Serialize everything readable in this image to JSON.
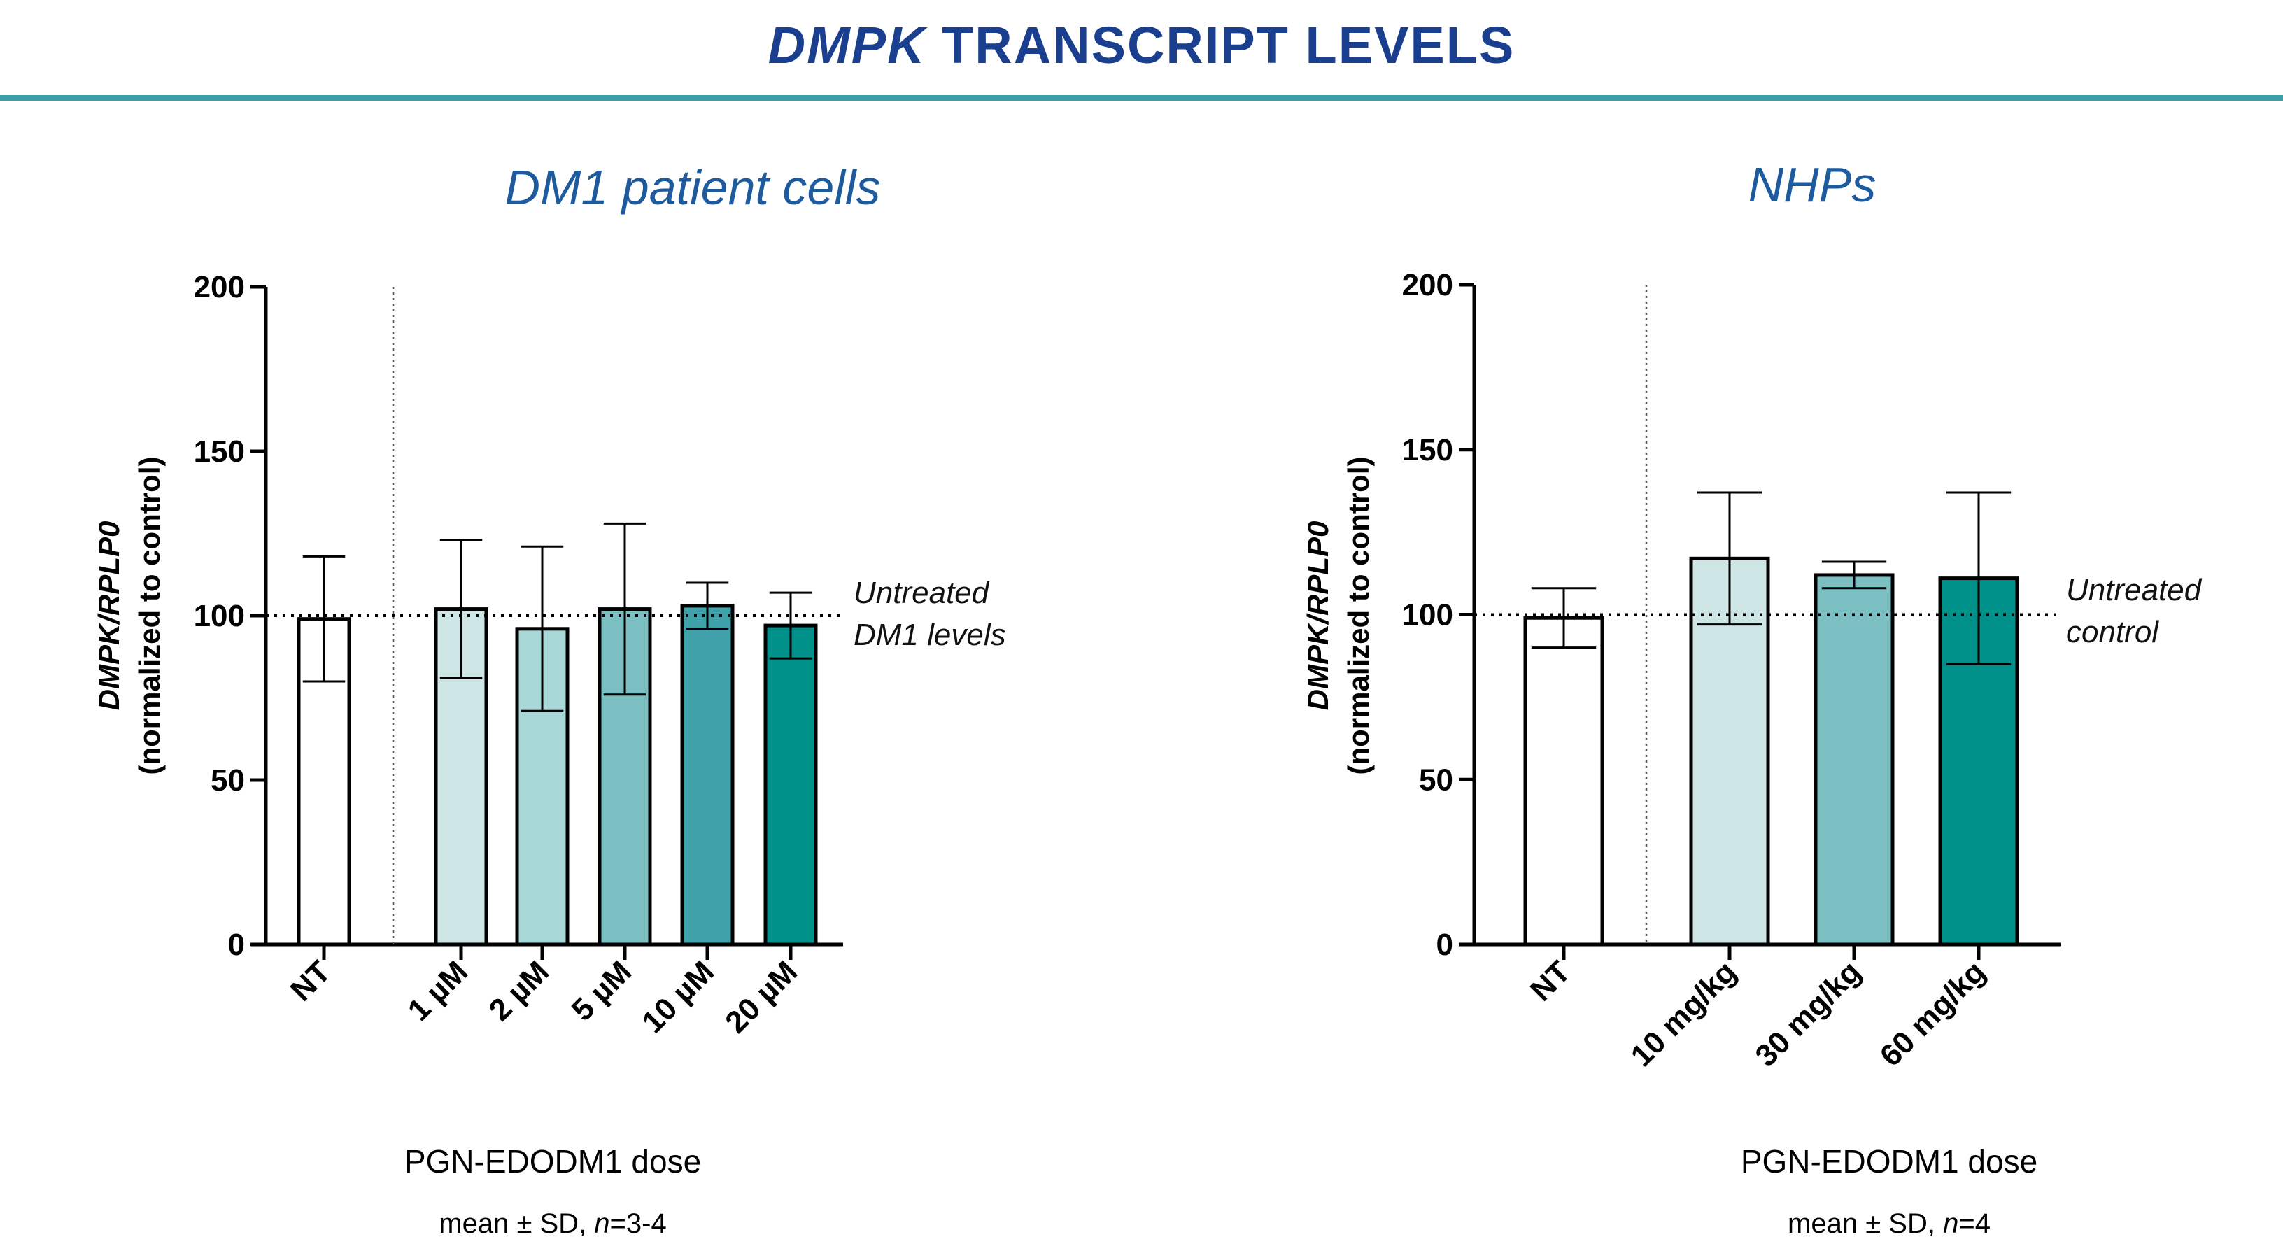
{
  "page": {
    "title_italic": "DMPK",
    "title_rest": " TRANSCRIPT LEVELS"
  },
  "colors": {
    "title": "#1b3f8f",
    "panel_title": "#1e5b9e",
    "rule": "#3a9ea5",
    "bar_nt": "#ffffff",
    "bar_1": "#cde6e5",
    "bar_2": "#a8d7d8",
    "bar_3": "#7bbfc3",
    "bar_4": "#3fa2ab",
    "bar_5": "#00918b"
  },
  "chart_data": [
    {
      "type": "bar",
      "title": "DM1 patient cells",
      "ylabel_line1": "DMPK/RPLP0",
      "ylabel_line2": "(normalized to control)",
      "xlabel": "PGN-EDODM1 dose",
      "note_prefix": "mean ± SD, ",
      "note_n": "n",
      "note_suffix": "=3-4",
      "ylim": [
        0,
        200
      ],
      "yticks": [
        0,
        50,
        100,
        150,
        200
      ],
      "reference_line": 100,
      "reference_label": [
        "Untreated",
        "DM1 levels"
      ],
      "categories": [
        "NT",
        "1 µM",
        "2 µM",
        "5 µM",
        "10 µM",
        "20 µM"
      ],
      "values": [
        99,
        102,
        96,
        102,
        103,
        97
      ],
      "errors": [
        19,
        21,
        25,
        26,
        7,
        10
      ],
      "colors": [
        "#ffffff",
        "#cde6e5",
        "#a8d7d8",
        "#7bbfc3",
        "#3fa2ab",
        "#00918b"
      ]
    },
    {
      "type": "bar",
      "title": "NHPs",
      "ylabel_line1": "DMPK/RPLP0",
      "ylabel_line2": "(normalized to control)",
      "xlabel": "PGN-EDODM1 dose",
      "note_prefix": "mean ± SD, ",
      "note_n": "n",
      "note_suffix": "=4",
      "ylim": [
        0,
        200
      ],
      "yticks": [
        0,
        50,
        100,
        150,
        200
      ],
      "reference_line": 100,
      "reference_label": [
        "Untreated",
        "control"
      ],
      "categories": [
        "NT",
        "10 mg/kg",
        "30 mg/kg",
        "60 mg/kg"
      ],
      "values": [
        99,
        117,
        112,
        111
      ],
      "errors": [
        9,
        20,
        4,
        26
      ],
      "colors": [
        "#ffffff",
        "#cde6e5",
        "#7bbfc3",
        "#00918b"
      ]
    }
  ]
}
